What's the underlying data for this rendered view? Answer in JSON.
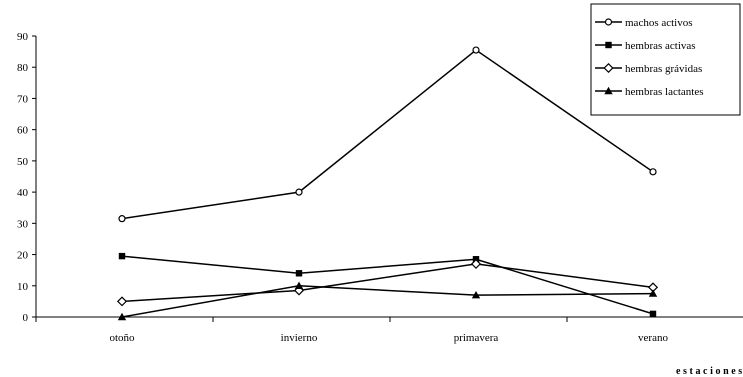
{
  "chart_data": {
    "type": "line",
    "title": "",
    "xlabel": "estaciones",
    "ylabel": "",
    "ylim": [
      0,
      90
    ],
    "yticks": [
      0,
      10,
      20,
      30,
      40,
      50,
      60,
      70,
      80,
      90
    ],
    "categories": [
      "otoño",
      "invierno",
      "primavera",
      "verano"
    ],
    "grid": false,
    "legend_position": "top-right",
    "series": [
      {
        "name": "machos activos",
        "marker": "open-circle",
        "color": "#000000",
        "values": [
          31.5,
          40,
          85.5,
          46.5
        ]
      },
      {
        "name": "hembras activas",
        "marker": "filled-square",
        "color": "#000000",
        "values": [
          19.5,
          14,
          18.5,
          1
        ]
      },
      {
        "name": "hembras grávidas",
        "marker": "open-diamond",
        "color": "#000000",
        "values": [
          5,
          8.5,
          17,
          9.5
        ]
      },
      {
        "name": "hembras lactantes",
        "marker": "filled-triangle",
        "color": "#000000",
        "values": [
          0,
          10,
          7,
          7.5
        ]
      }
    ]
  }
}
